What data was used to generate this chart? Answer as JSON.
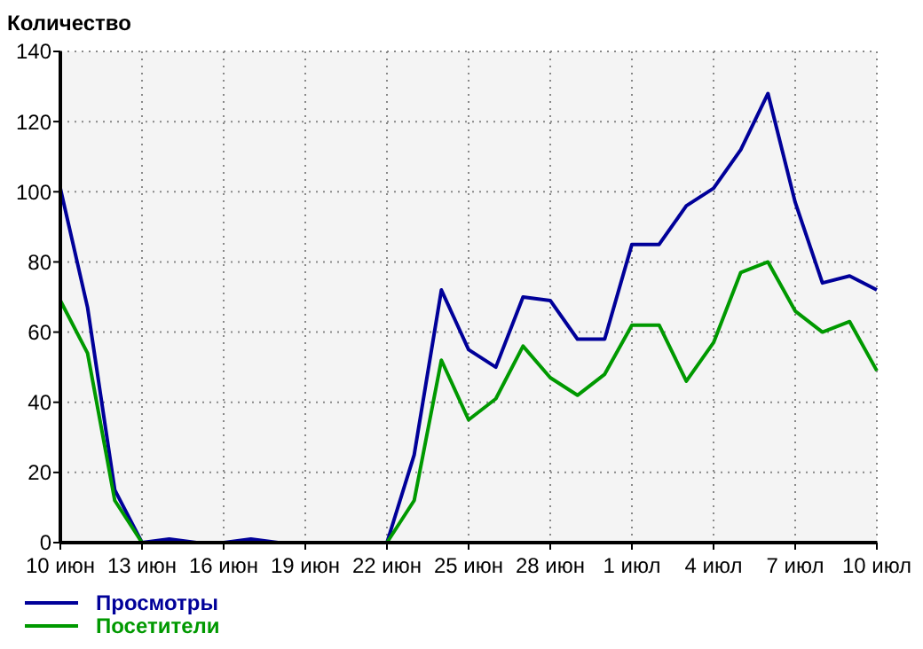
{
  "chart_data": {
    "type": "line",
    "ylabel": "Количество",
    "x": [
      "--06-10",
      "--06-11",
      "--06-12",
      "--06-13",
      "--06-14",
      "--06-15",
      "--06-16",
      "--06-17",
      "--06-18",
      "--06-19",
      "--06-20",
      "--06-21",
      "--06-22",
      "--06-23",
      "--06-24",
      "--06-25",
      "--06-26",
      "--06-27",
      "--06-28",
      "--06-29",
      "--06-30",
      "--07-01",
      "--07-02",
      "--07-03",
      "--07-04",
      "--07-05",
      "--07-06",
      "--07-07",
      "--07-08",
      "--07-09",
      "--07-10"
    ],
    "series": [
      {
        "name": "Просмотры",
        "color": "#000099",
        "values": [
          101,
          67,
          15,
          0,
          1,
          0,
          0,
          1,
          0,
          0,
          0,
          0,
          0,
          25,
          72,
          55,
          50,
          70,
          69,
          58,
          58,
          85,
          85,
          96,
          101,
          112,
          128,
          97,
          74,
          76,
          72
        ]
      },
      {
        "name": "Посетители",
        "color": "#009900",
        "values": [
          69,
          54,
          12,
          0,
          0,
          0,
          0,
          0,
          0,
          0,
          0,
          0,
          0,
          12,
          52,
          35,
          41,
          56,
          47,
          42,
          48,
          62,
          62,
          46,
          57,
          77,
          80,
          66,
          60,
          63,
          49
        ]
      }
    ],
    "xlim": [
      "--06-10",
      "--07-10"
    ],
    "xticks": [
      {
        "value": "--06-10",
        "label": "10 июн"
      },
      {
        "value": "--06-13",
        "label": "13 июн"
      },
      {
        "value": "--06-16",
        "label": "16 июн"
      },
      {
        "value": "--06-19",
        "label": "19 июн"
      },
      {
        "value": "--06-22",
        "label": "22 июн"
      },
      {
        "value": "--06-25",
        "label": "25 июн"
      },
      {
        "value": "--06-28",
        "label": "28 июн"
      },
      {
        "value": "--07-01",
        "label": "1 июл"
      },
      {
        "value": "--07-04",
        "label": "4 июл"
      },
      {
        "value": "--07-07",
        "label": "7 июл"
      },
      {
        "value": "--07-10",
        "label": "10 июл"
      }
    ],
    "ylim": [
      0,
      140
    ],
    "yticks": [
      0,
      20,
      40,
      60,
      80,
      100,
      120,
      140
    ],
    "grid": true,
    "legend": "bottom left",
    "marker": "none",
    "line_style": "solid"
  }
}
